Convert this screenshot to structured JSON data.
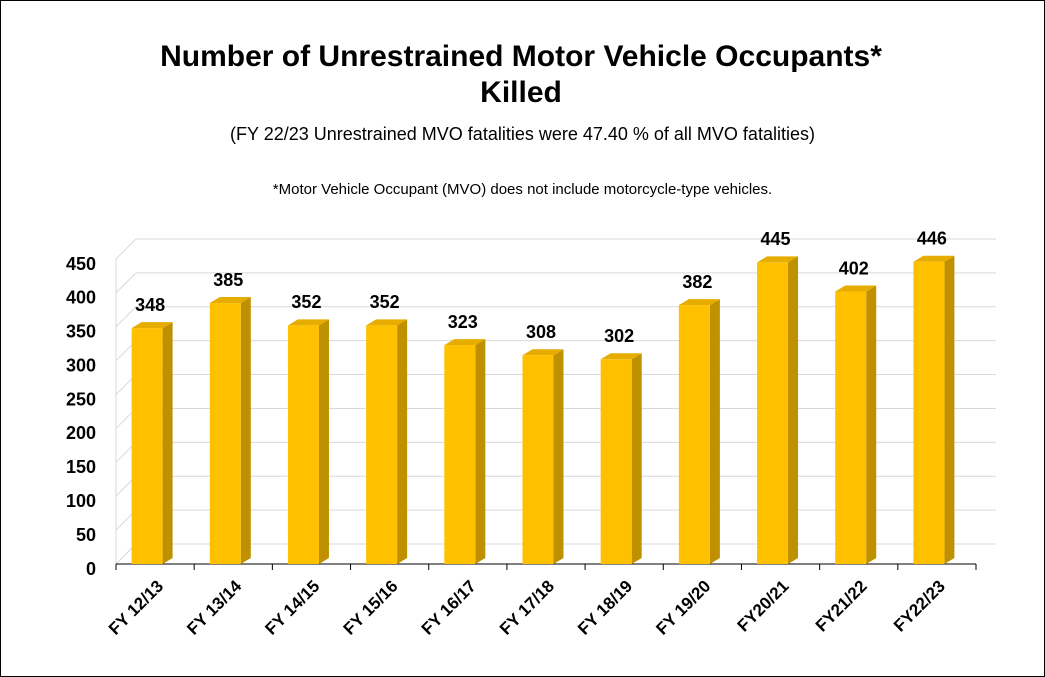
{
  "chart_data": {
    "type": "bar3d",
    "title": "Number of Unrestrained Motor Vehicle Occupants* Killed",
    "subtitle": "(FY 22/23 Unrestrained MVO fatalities were 47.40 % of all MVO fatalities)",
    "note": "*Motor Vehicle Occupant (MVO) does not include motorcycle-type vehicles.",
    "categories": [
      "FY 12/13",
      "FY 13/14",
      "FY 14/15",
      "FY 15/16",
      "FY 16/17",
      "FY 17/18",
      "FY 18/19",
      "FY 19/20",
      "FY20/21",
      "FY21/22",
      "FY22/23"
    ],
    "values": [
      348,
      385,
      352,
      352,
      323,
      308,
      302,
      382,
      445,
      402,
      446
    ],
    "color": "#ffc000",
    "ylim": [
      0,
      450
    ],
    "yticks": [
      0,
      50,
      100,
      150,
      200,
      250,
      300,
      350,
      400,
      450
    ],
    "grid": true
  }
}
